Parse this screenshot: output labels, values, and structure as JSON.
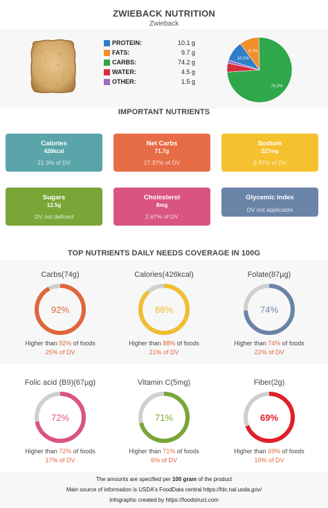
{
  "header": {
    "title": "ZWIEBACK NUTRITION",
    "subtitle": "Zwieback"
  },
  "macros": [
    {
      "name": "PROTEIN:",
      "value": "10.1 g",
      "color": "#2f7ec6",
      "pie_label": "10.1%",
      "pct": 10.1
    },
    {
      "name": "FATS:",
      "value": "9.7 g",
      "color": "#f28e2b",
      "pie_label": "9.7%",
      "pct": 9.7
    },
    {
      "name": "CARBS:",
      "value": "74.2 g",
      "color": "#2ea84a",
      "pie_label": "74.2%",
      "pct": 74.2
    },
    {
      "name": "WATER:",
      "value": "4.5 g",
      "color": "#d62f3b",
      "pie_label": "",
      "pct": 4.5
    },
    {
      "name": "OTHER:",
      "value": "1.5 g",
      "color": "#9b6cc3",
      "pie_label": "",
      "pct": 1.5
    }
  ],
  "important": {
    "heading": "IMPORTANT NUTRIENTS",
    "cards": [
      {
        "name": "Calories",
        "value": "426kcal",
        "dv": "21.3% of DV",
        "color": "#5aa5a9"
      },
      {
        "name": "Net Carbs",
        "value": "71.7g",
        "dv": "17.37% of DV",
        "color": "#e76d47"
      },
      {
        "name": "Sodium",
        "value": "227mg",
        "dv": "9.87% of DV",
        "color": "#f5c12e"
      },
      {
        "name": "Sugars",
        "value": "12.5g",
        "dv": "DV not defined",
        "color": "#79a637"
      },
      {
        "name": "Cholesterol",
        "value": "8mg",
        "dv": "2.67% of DV",
        "color": "#d9547e"
      },
      {
        "name": "Glycemic Index",
        "value": "",
        "dv": "DV not applicable",
        "color": "#6a84a8"
      }
    ]
  },
  "coverage": {
    "heading": "TOP NUTRIENTS DAILY NEEDS COVERAGE IN 100G",
    "higher_prefix": "Higher than ",
    "higher_suffix": " of foods",
    "gauges": [
      {
        "name": "Carbs(74g)",
        "pct": 92,
        "pct_label": "92%",
        "dv": "25% of DV",
        "color": "#e0663a"
      },
      {
        "name": "Calories(426kcal)",
        "pct": 88,
        "pct_label": "88%",
        "dv": "21% of DV",
        "color": "#f0be2e"
      },
      {
        "name": "Folate(87µg)",
        "pct": 74,
        "pct_label": "74%",
        "dv": "22% of DV",
        "color": "#6a84a8"
      },
      {
        "name": "Folic acid (B9)(67µg)",
        "pct": 72,
        "pct_label": "72%",
        "dv": "17% of DV",
        "color": "#d9547e"
      },
      {
        "name": "Vitamin C(5mg)",
        "pct": 71,
        "pct_label": "71%",
        "dv": "6% of DV",
        "color": "#79a637"
      },
      {
        "name": "Fiber(2g)",
        "pct": 69,
        "pct_label": "69%",
        "dv": "10% of DV",
        "color": "#e0202a"
      }
    ]
  },
  "footer": {
    "line1_prefix": "The amounts are specified per ",
    "line1_bold": "100 gram",
    "line1_suffix": " of the product",
    "line2": "Main source of information is USDA's FoodData central https://fdc.nal.usda.gov/",
    "line3": "Infographic created by https://foodstruct.com"
  }
}
